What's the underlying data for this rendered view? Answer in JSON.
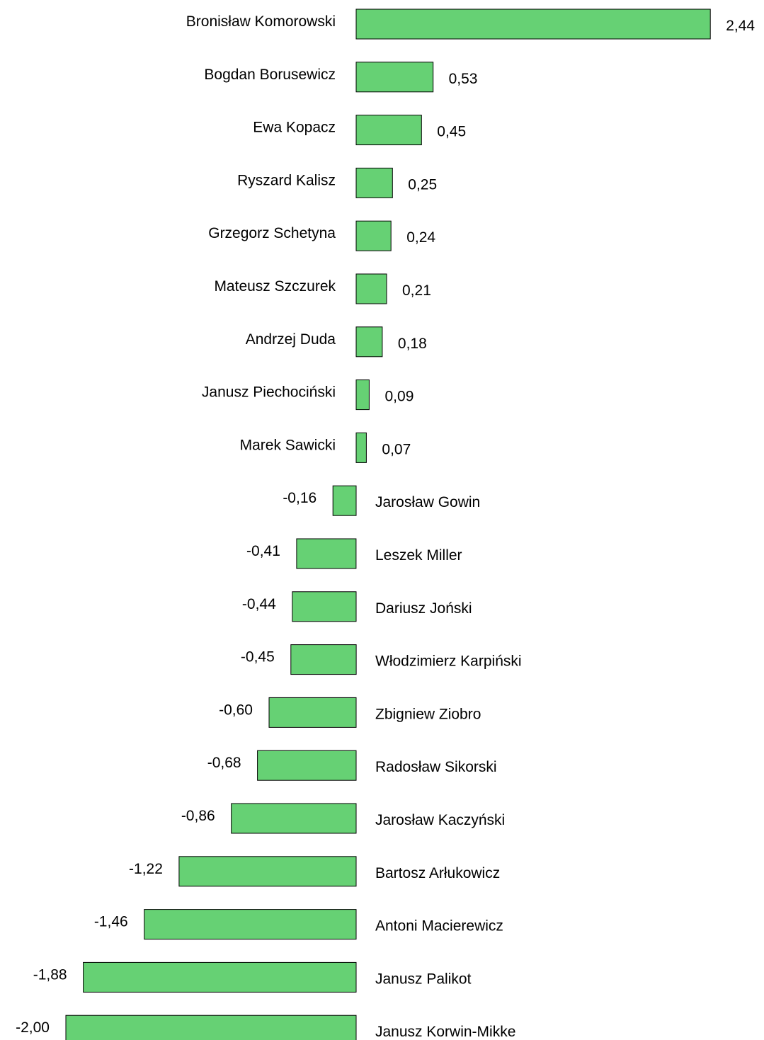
{
  "chart_data": {
    "type": "bar",
    "orientation": "horizontal",
    "title": "",
    "xlabel": "",
    "ylabel": "",
    "grid": false,
    "categories": [
      "Bronisław Komorowski",
      "Bogdan Borusewicz",
      "Ewa Kopacz",
      "Ryszard Kalisz",
      "Grzegorz Schetyna",
      "Mateusz Szczurek",
      "Andrzej Duda",
      "Janusz Piechociński",
      "Marek Sawicki",
      "Jarosław Gowin",
      "Leszek Miller",
      "Dariusz Joński",
      "Włodzimierz Karpiński",
      "Zbigniew Ziobro",
      "Radosław Sikorski",
      "Jarosław Kaczyński",
      "Bartosz Arłukowicz",
      "Antoni Macierewicz",
      "Janusz Palikot",
      "Janusz Korwin-Mikke"
    ],
    "values": [
      2.44,
      0.53,
      0.45,
      0.25,
      0.24,
      0.21,
      0.18,
      0.09,
      0.07,
      -0.16,
      -0.41,
      -0.44,
      -0.45,
      -0.6,
      -0.68,
      -0.86,
      -1.22,
      -1.46,
      -1.88,
      -2.0
    ],
    "value_labels": [
      "2,44",
      "0,53",
      "0,45",
      "0,25",
      "0,24",
      "0,21",
      "0,18",
      "0,09",
      "0,07",
      "-0,16",
      "-0,41",
      "-0,44",
      "-0,45",
      "-0,60",
      "-0,68",
      "-0,86",
      "-1,22",
      "-1,46",
      "-1,88",
      "-2,00"
    ],
    "bar_color": "#66d174",
    "xlim": [
      -2.0,
      2.44
    ]
  }
}
